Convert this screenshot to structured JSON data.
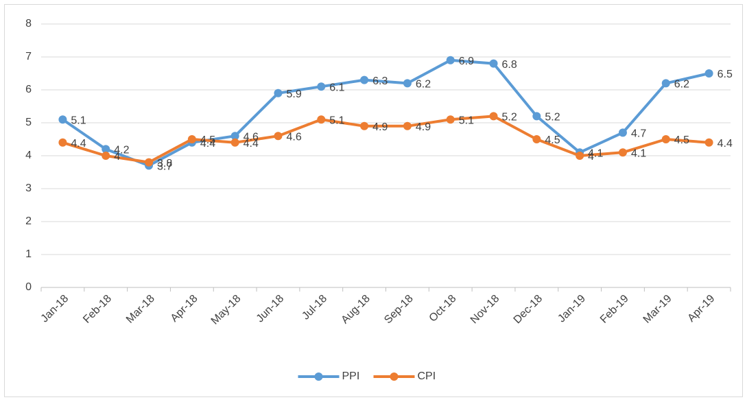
{
  "chart_data": {
    "type": "line",
    "categories": [
      "Jan-18",
      "Feb-18",
      "Mar-18",
      "Apr-18",
      "May-18",
      "Jun-18",
      "Jul-18",
      "Aug-18",
      "Sep-18",
      "Oct-18",
      "Nov-18",
      "Dec-18",
      "Jan-19",
      "Feb-19",
      "Mar-19",
      "Apr-19"
    ],
    "series": [
      {
        "name": "PPI",
        "color": "#5b9bd5",
        "values": [
          5.1,
          4.2,
          3.7,
          4.4,
          4.6,
          5.9,
          6.1,
          6.3,
          6.2,
          6.9,
          6.8,
          5.2,
          4.1,
          4.7,
          6.2,
          6.5
        ]
      },
      {
        "name": "CPI",
        "color": "#ed7d31",
        "values": [
          4.4,
          4,
          3.8,
          4.5,
          4.4,
          4.6,
          5.1,
          4.9,
          4.9,
          5.1,
          5.2,
          4.5,
          4,
          4.1,
          4.5,
          4.4
        ]
      }
    ],
    "ylim": [
      0,
      8
    ],
    "yticks": [
      0,
      1,
      2,
      3,
      4,
      5,
      6,
      7,
      8
    ],
    "grid": true,
    "legend": "bottom",
    "data_labels": true
  }
}
